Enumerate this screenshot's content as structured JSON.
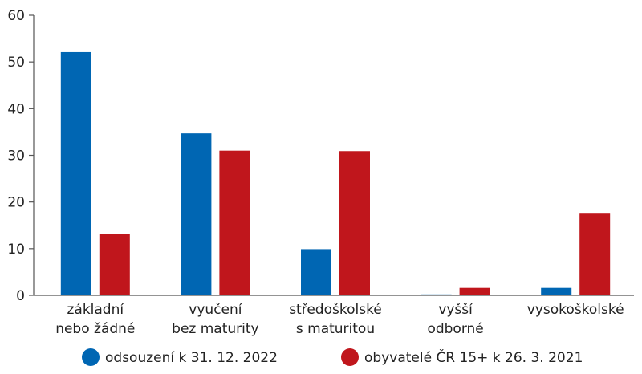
{
  "chart_data": {
    "type": "bar",
    "categories": [
      [
        "základní",
        "nebo žádné"
      ],
      [
        "vyučení",
        "bez maturity"
      ],
      [
        "středoškolské",
        "s maturitou"
      ],
      [
        "vyšší",
        "odborné"
      ],
      [
        "vysokoškolské"
      ]
    ],
    "series": [
      {
        "name": "odsouzení k 31. 12. 2022",
        "color": "#0066b3",
        "values": [
          52.1,
          34.7,
          9.9,
          0.2,
          1.6
        ]
      },
      {
        "name": "obyvatelé ČR 15+ k 26. 3. 2021",
        "color": "#c0161c",
        "values": [
          13.2,
          31.0,
          30.9,
          1.6,
          17.5
        ]
      }
    ],
    "yticks": [
      0,
      10,
      20,
      30,
      40,
      50,
      60
    ],
    "ylim": [
      0,
      60
    ],
    "grid": false,
    "legend_position": "bottom"
  }
}
